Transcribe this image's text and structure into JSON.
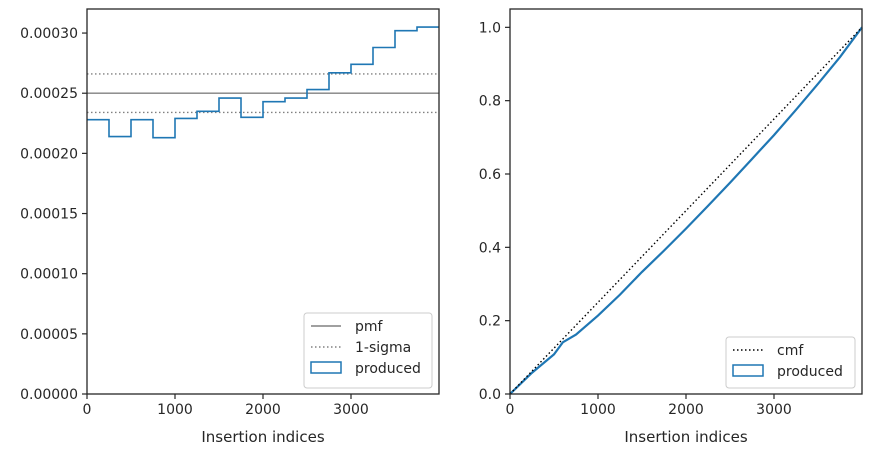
{
  "chart_data": [
    {
      "type": "step",
      "xlabel": "Insertion indices",
      "ylabel": "",
      "xlim": [
        0,
        4000
      ],
      "ylim": [
        0,
        0.00032
      ],
      "xticks": [
        "0",
        "1000",
        "2000",
        "3000"
      ],
      "xtick_values": [
        0,
        1000,
        2000,
        3000
      ],
      "yticks": [
        "0.00000",
        "0.00005",
        "0.00010",
        "0.00015",
        "0.00020",
        "0.00025",
        "0.00030"
      ],
      "ytick_values": [
        0,
        5e-05,
        0.0001,
        0.00015,
        0.0002,
        0.00025,
        0.0003
      ],
      "grid": false,
      "legend_position": "bottom-right",
      "reference_lines": [
        {
          "name": "pmf",
          "value": 0.00025,
          "style": "solid",
          "color": "#808080"
        },
        {
          "name": "1-sigma",
          "value": 0.000266,
          "style": "dotted",
          "color": "#808080"
        },
        {
          "name": "1-sigma",
          "value": 0.000234,
          "style": "dotted",
          "color": "#808080"
        }
      ],
      "series": [
        {
          "name": "produced",
          "color": "#1f77b4",
          "bin_edges": [
            0,
            250,
            500,
            750,
            1000,
            1250,
            1500,
            1750,
            2000,
            2250,
            2500,
            2750,
            3000,
            3250,
            3500,
            3750,
            4000
          ],
          "values": [
            0.000228,
            0.000214,
            0.000228,
            0.000213,
            0.000229,
            0.000235,
            0.000246,
            0.00023,
            0.000243,
            0.000246,
            0.000253,
            0.000267,
            0.000274,
            0.000288,
            0.000302,
            0.000305
          ]
        }
      ],
      "legend": [
        {
          "label": "pmf",
          "kind": "line-solid",
          "color": "#808080"
        },
        {
          "label": "1-sigma",
          "kind": "line-dotted",
          "color": "#808080"
        },
        {
          "label": "produced",
          "kind": "box",
          "color": "#1f77b4"
        }
      ]
    },
    {
      "type": "line",
      "xlabel": "Insertion indices",
      "ylabel": "",
      "xlim": [
        0,
        4000
      ],
      "ylim": [
        0,
        1.05
      ],
      "xticks": [
        "0",
        "1000",
        "2000",
        "3000"
      ],
      "xtick_values": [
        0,
        1000,
        2000,
        3000
      ],
      "yticks": [
        "0.0",
        "0.2",
        "0.4",
        "0.6",
        "0.8",
        "1.0"
      ],
      "ytick_values": [
        0,
        0.2,
        0.4,
        0.6,
        0.8,
        1.0
      ],
      "grid": false,
      "legend_position": "bottom-right",
      "series": [
        {
          "name": "cmf",
          "color": "#000000",
          "style": "dotted",
          "x": [
            0,
            4000
          ],
          "y": [
            0,
            1.0
          ]
        },
        {
          "name": "produced",
          "color": "#1f77b4",
          "style": "solid",
          "x": [
            0,
            250,
            500,
            600,
            750,
            1000,
            1250,
            1500,
            1750,
            2000,
            2250,
            2500,
            2750,
            3000,
            3250,
            3500,
            3750,
            4000
          ],
          "y": [
            0,
            0.058,
            0.108,
            0.141,
            0.162,
            0.214,
            0.271,
            0.333,
            0.391,
            0.451,
            0.513,
            0.576,
            0.641,
            0.706,
            0.775,
            0.846,
            0.919,
            1.0
          ]
        }
      ],
      "legend": [
        {
          "label": "cmf",
          "kind": "line-dotted",
          "color": "#000000"
        },
        {
          "label": "produced",
          "kind": "box",
          "color": "#1f77b4"
        }
      ]
    }
  ]
}
